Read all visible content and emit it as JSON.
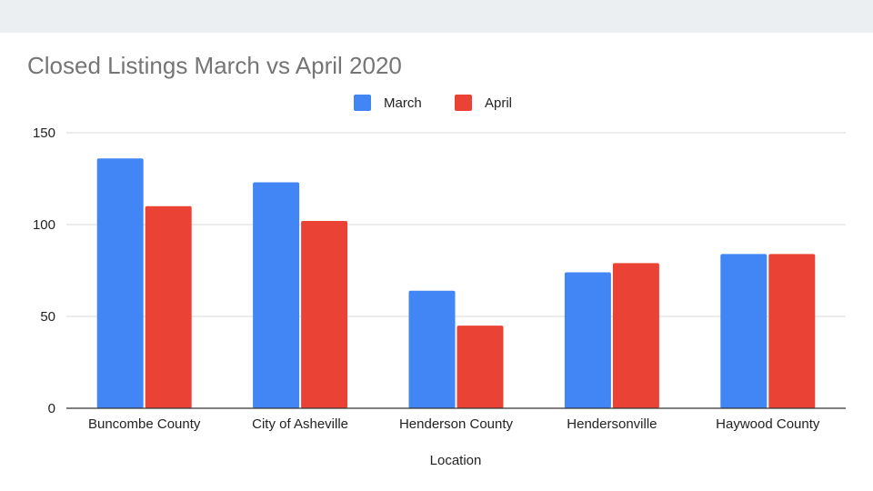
{
  "chart_data": {
    "type": "bar",
    "title": "Closed Listings March vs April 2020",
    "xlabel": "Location",
    "ylabel": "",
    "categories": [
      "Buncombe County",
      "City of Asheville",
      "Henderson County",
      "Hendersonville",
      "Haywood County"
    ],
    "series": [
      {
        "name": "March",
        "color": "#4285f4",
        "values": [
          136,
          123,
          64,
          74,
          84
        ]
      },
      {
        "name": "April",
        "color": "#ea4335",
        "values": [
          110,
          102,
          45,
          79,
          84
        ]
      }
    ],
    "ylim": [
      0,
      150
    ],
    "yticks": [
      0,
      50,
      100,
      150
    ],
    "grid": true,
    "legend_position": "top-center"
  }
}
